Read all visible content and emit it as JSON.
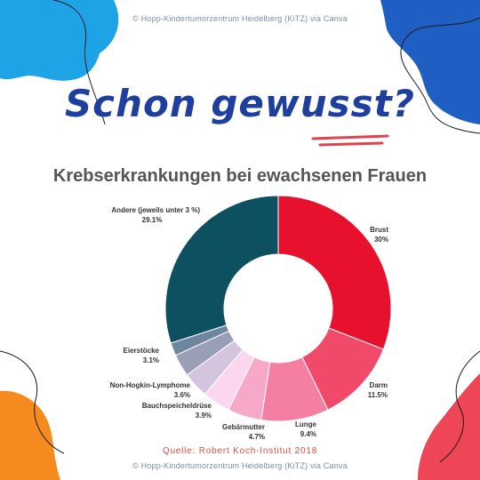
{
  "credit": {
    "top": "© Hopp-Kindertumorzentrum Heidelberg (KiTZ) via Canva",
    "bottom": "© Hopp-Kindertumorzentrum Heidelberg (KiTZ) via Canva"
  },
  "headline": "Schon gewusst?",
  "source": "Quelle: Robert Koch-Institut 2018",
  "colors": {
    "headline": "#1f3f9e",
    "underline": "#e0434f",
    "blob_blue_light": "#1ea3e6",
    "blob_blue_dark": "#1f5fc4",
    "blob_orange": "#f58a1f",
    "blob_red": "#ee4656"
  },
  "chart_data": {
    "type": "pie",
    "variant": "donut",
    "title": "Krebserkrankungen bei ewachsenen Frauen",
    "slices": [
      {
        "name": "Brust",
        "value": 30,
        "value_label": "30%",
        "color": "#e8112d"
      },
      {
        "name": "Darm",
        "value": 11.5,
        "value_label": "11.5%",
        "color": "#f1496a"
      },
      {
        "name": "Lunge",
        "value": 9.4,
        "value_label": "9.4%",
        "color": "#f57fa3"
      },
      {
        "name": "Gebärmutter",
        "value": 4.7,
        "value_label": "4.7%",
        "color": "#f7a8c8"
      },
      {
        "name": "Bauchspeicheldrüse",
        "value": 3.9,
        "value_label": "3.9%",
        "color": "#fbd6ee"
      },
      {
        "name": "Non-Hogkin-Lymphome",
        "value": 3.6,
        "value_label": "3.6%",
        "color": "#d5c4de"
      },
      {
        "name": "Eierstöcke",
        "value": 3.1,
        "value_label": "3.1%",
        "color": "#9a9eb6"
      },
      {
        "name": "",
        "value": 1.8,
        "value_label": "",
        "color": "#6f86a0"
      },
      {
        "name": "Andere (jeweils unter 3 %)",
        "value": 29.1,
        "value_label": "29.1%",
        "color": "#0d5060"
      }
    ]
  }
}
